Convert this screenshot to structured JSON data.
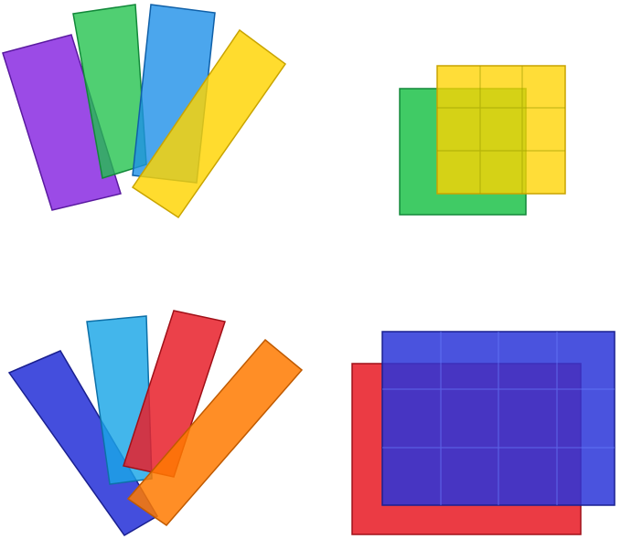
{
  "image": {
    "subject": "magnetic-building-tiles",
    "colors": {
      "purple": "#8a2be2",
      "green": "#1fc24a",
      "blue": "#1e90e8",
      "yellow": "#ffd400",
      "deep_blue": "#2a35d8",
      "cyan": "#1aa6e6",
      "red": "#e8202a",
      "orange": "#ff7a00",
      "background": "#ffffff"
    }
  }
}
